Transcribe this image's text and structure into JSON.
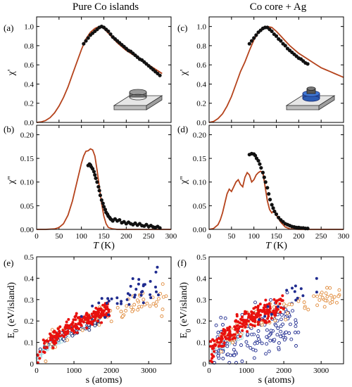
{
  "column_titles": {
    "left": "Pure Co islands",
    "right": "Co core + Ag"
  },
  "colors": {
    "curve": "#b5431c",
    "marker": "#111111",
    "red": "#e8110e",
    "blue": "#1f2b8f",
    "orange": "#e08a3a",
    "navy": "#1a2a6e",
    "cyan": "#9fd6df"
  },
  "icons": {
    "left": "co-island-on-substrate-icon",
    "right": "co-core-ag-shell-island-icon"
  },
  "chart_data": [
    {
      "panel": "(a)",
      "type": "line",
      "ylabel": "χ'",
      "xlabel": "",
      "xlim": [
        0,
        300
      ],
      "ylim": [
        0,
        1.1
      ],
      "xticks": [
        0,
        50,
        100,
        150,
        200,
        250,
        300
      ],
      "yticks": [
        "0.0",
        "0.2",
        "0.4",
        "0.6",
        "0.8",
        "1.0"
      ],
      "show_xtick_labels": false,
      "curve": {
        "x": [
          0,
          10,
          20,
          30,
          40,
          50,
          60,
          70,
          80,
          90,
          100,
          110,
          120,
          130,
          140,
          150,
          160,
          170,
          180,
          190,
          200,
          210,
          220,
          230,
          240,
          250,
          260,
          270,
          280
        ],
        "y": [
          0,
          0.005,
          0.02,
          0.05,
          0.1,
          0.17,
          0.26,
          0.37,
          0.5,
          0.63,
          0.76,
          0.87,
          0.94,
          0.98,
          1.0,
          0.98,
          0.93,
          0.88,
          0.83,
          0.79,
          0.75,
          0.72,
          0.69,
          0.66,
          0.63,
          0.6,
          0.57,
          0.54,
          0.51
        ]
      },
      "points": {
        "x": [
          105,
          110,
          115,
          120,
          125,
          130,
          135,
          140,
          145,
          150,
          155,
          160,
          165,
          170,
          175,
          180,
          185,
          190,
          195,
          200,
          205,
          210,
          215,
          220,
          225,
          230,
          235,
          240,
          245,
          250,
          255,
          260,
          265,
          270,
          275
        ],
        "y": [
          0.82,
          0.85,
          0.88,
          0.91,
          0.93,
          0.95,
          0.97,
          0.99,
          1.0,
          0.99,
          0.97,
          0.95,
          0.92,
          0.89,
          0.87,
          0.85,
          0.83,
          0.81,
          0.79,
          0.77,
          0.75,
          0.74,
          0.72,
          0.7,
          0.68,
          0.66,
          0.65,
          0.63,
          0.61,
          0.59,
          0.57,
          0.55,
          0.53,
          0.51,
          0.49
        ]
      }
    },
    {
      "panel": "(b)",
      "type": "line",
      "ylabel": "χ''",
      "xlabel": "T (K)",
      "xlim": [
        0,
        300
      ],
      "ylim": [
        0,
        0.22
      ],
      "xticks": [
        0,
        50,
        100,
        150,
        200,
        250,
        300
      ],
      "yticks": [
        "0.00",
        "0.05",
        "0.10",
        "0.15",
        "0.20"
      ],
      "show_xtick_labels": true,
      "curve": {
        "x": [
          0,
          20,
          40,
          50,
          60,
          70,
          80,
          90,
          100,
          105,
          110,
          115,
          120,
          125,
          130,
          135,
          140,
          145,
          150,
          155,
          160,
          170,
          180,
          190,
          200,
          300
        ],
        "y": [
          0,
          0,
          0.001,
          0.004,
          0.012,
          0.03,
          0.06,
          0.1,
          0.14,
          0.155,
          0.165,
          0.166,
          0.17,
          0.168,
          0.155,
          0.125,
          0.09,
          0.055,
          0.028,
          0.012,
          0.004,
          0.001,
          0,
          0,
          0,
          0
        ]
      },
      "points": {
        "x": [
          115,
          118,
          120,
          122,
          125,
          128,
          130,
          132,
          135,
          138,
          140,
          142,
          145,
          148,
          150,
          153,
          155,
          158,
          160,
          163,
          165,
          168,
          170,
          175,
          180,
          185,
          190,
          195,
          200,
          205,
          210,
          215,
          220,
          225,
          230,
          235,
          240,
          245,
          250,
          255,
          260,
          265,
          270,
          275
        ],
        "y": [
          0.135,
          0.138,
          0.136,
          0.132,
          0.128,
          0.122,
          0.115,
          0.108,
          0.1,
          0.09,
          0.082,
          0.072,
          0.062,
          0.055,
          0.048,
          0.042,
          0.036,
          0.032,
          0.028,
          0.025,
          0.022,
          0.02,
          0.018,
          0.022,
          0.018,
          0.02,
          0.014,
          0.016,
          0.012,
          0.015,
          0.012,
          0.01,
          0.013,
          0.009,
          0.012,
          0.008,
          0.007,
          0.01,
          0.006,
          0.008,
          0.005,
          0.004,
          0.006,
          0.003
        ]
      }
    },
    {
      "panel": "(c)",
      "type": "line",
      "ylabel": "χ'",
      "xlabel": "",
      "xlim": [
        0,
        300
      ],
      "ylim": [
        0,
        1.1
      ],
      "xticks": [
        0,
        50,
        100,
        150,
        200,
        250,
        300
      ],
      "yticks": [
        "0.0",
        "0.2",
        "0.4",
        "0.6",
        "0.8",
        "1.0"
      ],
      "show_xtick_labels": false,
      "curve": {
        "x": [
          0,
          10,
          20,
          30,
          40,
          50,
          60,
          70,
          80,
          90,
          100,
          110,
          120,
          130,
          140,
          150,
          160,
          170,
          180,
          190,
          200,
          210,
          220,
          230,
          240,
          250,
          260,
          270,
          280,
          290,
          300
        ],
        "y": [
          0,
          0.01,
          0.04,
          0.09,
          0.17,
          0.27,
          0.4,
          0.53,
          0.63,
          0.75,
          0.86,
          0.94,
          0.98,
          1.0,
          0.99,
          0.95,
          0.9,
          0.85,
          0.8,
          0.76,
          0.72,
          0.69,
          0.66,
          0.63,
          0.6,
          0.57,
          0.55,
          0.53,
          0.51,
          0.49,
          0.47
        ]
      },
      "points": {
        "x": [
          90,
          95,
          100,
          105,
          110,
          115,
          120,
          125,
          130,
          135,
          140,
          145,
          150,
          155,
          160,
          165,
          170,
          175,
          180,
          185,
          190,
          195,
          200,
          205,
          210,
          215,
          220
        ],
        "y": [
          0.82,
          0.85,
          0.88,
          0.91,
          0.94,
          0.96,
          0.98,
          0.99,
          0.99,
          0.97,
          0.95,
          0.92,
          0.9,
          0.87,
          0.85,
          0.82,
          0.8,
          0.77,
          0.75,
          0.73,
          0.71,
          0.69,
          0.67,
          0.66,
          0.64,
          0.62,
          0.61
        ]
      }
    },
    {
      "panel": "(d)",
      "type": "line",
      "ylabel": "χ''",
      "xlabel": "T (K)",
      "xlim": [
        0,
        300
      ],
      "ylim": [
        0,
        0.22
      ],
      "xticks": [
        0,
        50,
        100,
        150,
        200,
        250,
        300
      ],
      "yticks": [
        "0.00",
        "0.05",
        "0.10",
        "0.15",
        "0.20"
      ],
      "show_xtick_labels": true,
      "curve": {
        "x": [
          0,
          10,
          20,
          25,
          30,
          35,
          40,
          45,
          50,
          55,
          60,
          65,
          70,
          75,
          80,
          85,
          90,
          95,
          100,
          105,
          110,
          115,
          120,
          125,
          130,
          135,
          140,
          145,
          150,
          160,
          170,
          180,
          200,
          300
        ],
        "y": [
          0,
          0.002,
          0.01,
          0.02,
          0.035,
          0.055,
          0.075,
          0.085,
          0.08,
          0.09,
          0.1,
          0.105,
          0.095,
          0.09,
          0.11,
          0.12,
          0.115,
          0.1,
          0.105,
          0.115,
          0.12,
          0.123,
          0.12,
          0.09,
          0.06,
          0.042,
          0.035,
          0.04,
          0.03,
          0.015,
          0.005,
          0.001,
          0,
          0
        ]
      },
      "points": {
        "x": [
          90,
          95,
          100,
          103,
          106,
          110,
          113,
          116,
          120,
          123,
          126,
          130,
          133,
          136,
          140,
          143,
          146,
          150,
          155,
          160,
          165,
          170,
          175,
          180,
          185,
          190,
          195,
          200,
          205,
          210,
          215,
          220
        ],
        "y": [
          0.158,
          0.16,
          0.159,
          0.156,
          0.15,
          0.145,
          0.138,
          0.13,
          0.12,
          0.11,
          0.1,
          0.088,
          0.075,
          0.063,
          0.052,
          0.045,
          0.038,
          0.032,
          0.025,
          0.02,
          0.016,
          0.012,
          0.01,
          0.008,
          0.006,
          0.005,
          0.004,
          0.004,
          0.003,
          0.003,
          0.002,
          0.002
        ]
      }
    },
    {
      "panel": "(e)",
      "type": "scatter",
      "ylabel": "E0 (eV/island)",
      "xlabel": "s (atoms)",
      "xlim": [
        0,
        3600
      ],
      "ylim": [
        0,
        0.5
      ],
      "xticks": [
        0,
        1000,
        2000,
        3000
      ],
      "yticks": [
        "0",
        "0.1",
        "0.2",
        "0.3",
        "0.4",
        "0.5"
      ],
      "show_xtick_labels": true,
      "series": [
        {
          "color": "cyan",
          "filled": false,
          "coef": 0.0046,
          "scatter": 0.008,
          "xmin": 20,
          "xmax": 900,
          "n": 70
        },
        {
          "color": "navy",
          "filled": false,
          "coef": 0.005,
          "scatter": 0.015,
          "xmin": 20,
          "xmax": 1700,
          "n": 80
        },
        {
          "color": "orange",
          "filled": false,
          "coef": 0.0052,
          "scatter": 0.03,
          "xmin": 200,
          "xmax": 3500,
          "n": 70
        },
        {
          "color": "red",
          "filled": true,
          "coef": 0.0057,
          "scatter": 0.018,
          "xmin": 20,
          "xmax": 1950,
          "n": 210
        },
        {
          "color": "blue",
          "filled": true,
          "coef": 0.0067,
          "scatter": 0.035,
          "xmin": 1200,
          "xmax": 3300,
          "n": 40
        }
      ]
    },
    {
      "panel": "(f)",
      "type": "scatter",
      "ylabel": "E0 (eV/island)",
      "xlabel": "s (atoms)",
      "xlim": [
        0,
        3600
      ],
      "ylim": [
        0,
        0.5
      ],
      "xticks": [
        0,
        1000,
        2000,
        3000
      ],
      "yticks": [
        "0",
        "0.1",
        "0.2",
        "0.3",
        "0.4",
        "0.5"
      ],
      "show_xtick_labels": true,
      "series": [
        {
          "color": "cyan",
          "filled": false,
          "coef": 0.0045,
          "scatter": 0.01,
          "xmin": 20,
          "xmax": 900,
          "n": 60
        },
        {
          "color": "blue",
          "filled": false,
          "coef": 0.004,
          "scatter": 0.06,
          "xmin": 100,
          "xmax": 2400,
          "n": 150
        },
        {
          "color": "orange",
          "filled": false,
          "coef": 0.0056,
          "scatter": 0.03,
          "xmin": 200,
          "xmax": 3500,
          "n": 80
        },
        {
          "color": "red",
          "filled": true,
          "coef": 0.0062,
          "scatter": 0.025,
          "xmin": 20,
          "xmax": 2000,
          "n": 220
        },
        {
          "color": "blue",
          "filled": true,
          "coef": 0.0068,
          "scatter": 0.035,
          "xmin": 1200,
          "xmax": 2900,
          "n": 15
        }
      ]
    }
  ]
}
